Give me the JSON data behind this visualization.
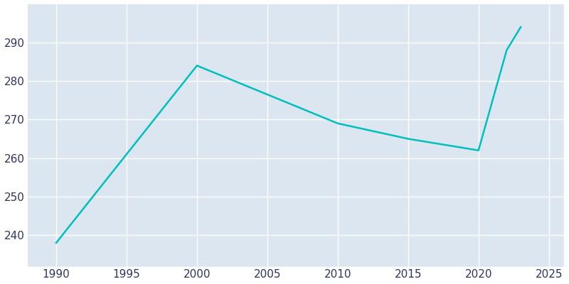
{
  "years": [
    1990,
    2000,
    2010,
    2015,
    2020,
    2022,
    2023
  ],
  "population": [
    238,
    284,
    269,
    265,
    262,
    288,
    294
  ],
  "line_color": "#00BFBF",
  "axes_bg_color": "#dce6f1",
  "fig_bg_color": "#ffffff",
  "grid_color": "#ffffff",
  "xlim": [
    1988,
    2026
  ],
  "ylim": [
    232,
    300
  ],
  "xticks": [
    1990,
    1995,
    2000,
    2005,
    2010,
    2015,
    2020,
    2025
  ],
  "yticks": [
    240,
    250,
    260,
    270,
    280,
    290
  ],
  "tick_label_color": "#2d3561",
  "tick_fontsize": 11,
  "line_width": 1.8
}
